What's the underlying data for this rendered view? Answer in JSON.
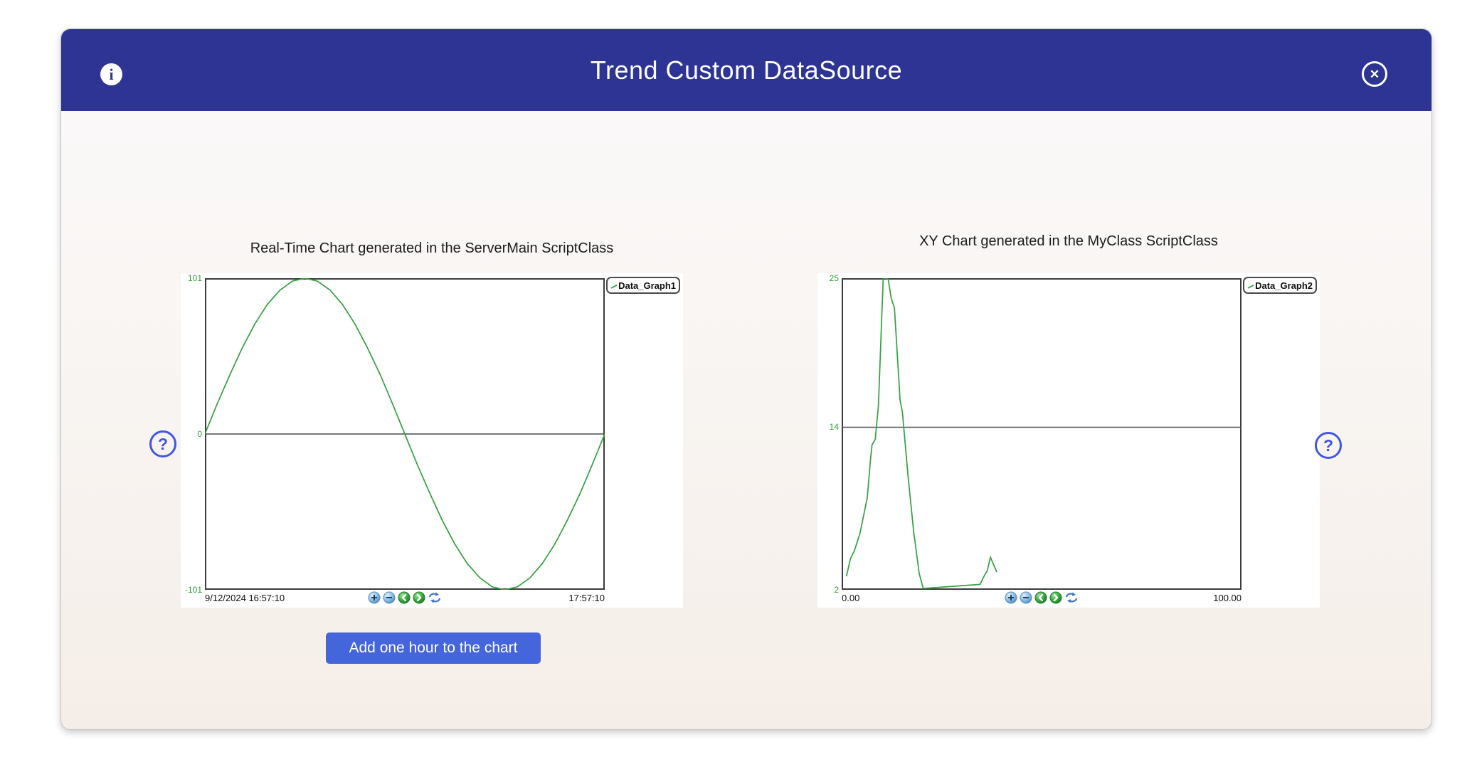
{
  "dialog": {
    "title": "Trend Custom DataSource"
  },
  "icons": {
    "info_glyph": "i",
    "close_glyph": "✕",
    "help_glyph": "?"
  },
  "buttons": {
    "add_hour": "Add one hour to the chart"
  },
  "toolbar_icon_names": [
    "zoom-in",
    "zoom-out",
    "scroll-left",
    "scroll-right",
    "refresh"
  ],
  "colors": {
    "header": "#2d3493",
    "button": "#4565dd",
    "series_green": "#33a03f",
    "tick_green": "#2f9e3b",
    "help_blue": "#4156e3"
  },
  "chart_data": [
    {
      "type": "line",
      "title": "Real-Time Chart generated in the ServerMain ScriptClass",
      "legend": "Data_Graph1",
      "line_color": "#33a03f",
      "x_start_label": "9/12/2024 16:57:10",
      "x_end_label": "17:57:10",
      "yticks": [
        "101",
        "0",
        "-101"
      ],
      "ylim": [
        -101,
        101
      ],
      "xlim": [
        0,
        1
      ],
      "mid_value": 0,
      "grid": "mid-horizontal-only",
      "legend_position": "top-right-outside",
      "points": [
        [
          0,
          0
        ],
        [
          0.031,
          19.7
        ],
        [
          0.063,
          38.7
        ],
        [
          0.094,
          56.1
        ],
        [
          0.125,
          71.4
        ],
        [
          0.156,
          84
        ],
        [
          0.188,
          93.3
        ],
        [
          0.219,
          99.1
        ],
        [
          0.25,
          101
        ],
        [
          0.281,
          99.1
        ],
        [
          0.313,
          93.3
        ],
        [
          0.344,
          84
        ],
        [
          0.375,
          71.4
        ],
        [
          0.406,
          56.1
        ],
        [
          0.438,
          38.7
        ],
        [
          0.469,
          19.7
        ],
        [
          0.5,
          0
        ],
        [
          0.531,
          -19.7
        ],
        [
          0.563,
          -38.7
        ],
        [
          0.594,
          -56.1
        ],
        [
          0.625,
          -71.4
        ],
        [
          0.656,
          -84
        ],
        [
          0.688,
          -93.3
        ],
        [
          0.719,
          -99.1
        ],
        [
          0.75,
          -101
        ],
        [
          0.781,
          -99.1
        ],
        [
          0.813,
          -93.3
        ],
        [
          0.844,
          -84
        ],
        [
          0.875,
          -71.4
        ],
        [
          0.906,
          -56.1
        ],
        [
          0.938,
          -38.7
        ],
        [
          0.969,
          -19.7
        ],
        [
          1,
          0
        ]
      ]
    },
    {
      "type": "line",
      "title": "XY Chart generated in the MyClass ScriptClass",
      "legend": "Data_Graph2",
      "line_color": "#33a03f",
      "x_start_label": "0.00",
      "x_end_label": "100.00",
      "yticks": [
        "25",
        "14",
        "2"
      ],
      "ylim": [
        2,
        25
      ],
      "xlim": [
        0,
        100
      ],
      "mid_value": 14,
      "grid": "mid-horizontal-only",
      "legend_position": "top-right-outside",
      "points": [
        [
          1.2,
          3.0
        ],
        [
          2.2,
          4.3
        ],
        [
          3.2,
          4.9
        ],
        [
          4.6,
          6.2
        ],
        [
          6.4,
          8.8
        ],
        [
          7.2,
          11.6
        ],
        [
          7.6,
          12.7
        ],
        [
          8.4,
          13.1
        ],
        [
          9.2,
          15.6
        ],
        [
          10.4,
          25
        ],
        [
          11.6,
          25
        ],
        [
          12.4,
          23.5
        ],
        [
          13.2,
          22.8
        ],
        [
          14.6,
          16
        ],
        [
          15.2,
          15.1
        ],
        [
          16.6,
          10.4
        ],
        [
          18,
          6.3
        ],
        [
          19.4,
          3.2
        ],
        [
          20.4,
          2.1
        ],
        [
          34.6,
          2.4
        ],
        [
          35.6,
          3.0
        ],
        [
          36.4,
          3.4
        ],
        [
          37.2,
          4.4
        ],
        [
          38.8,
          3.3
        ]
      ]
    }
  ]
}
